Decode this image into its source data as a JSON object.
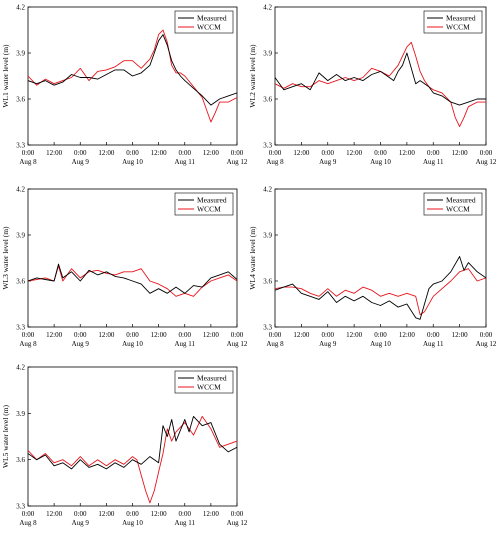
{
  "chart_data": [
    {
      "type": "line",
      "ylabel": "WL1 water level (m)",
      "ylim": [
        3.3,
        4.2
      ],
      "yticks": [
        "3.3",
        "3.6",
        "3.9",
        "4.2"
      ],
      "xlim": [
        0,
        96
      ],
      "xticks": [
        {
          "x": 0,
          "time": "0:00",
          "date": "Aug 8"
        },
        {
          "x": 12,
          "time": "12:00",
          "date": ""
        },
        {
          "x": 24,
          "time": "0:00",
          "date": "Aug 9"
        },
        {
          "x": 36,
          "time": "12:00",
          "date": ""
        },
        {
          "x": 48,
          "time": "0:00",
          "date": "Aug 10"
        },
        {
          "x": 60,
          "time": "12:00",
          "date": ""
        },
        {
          "x": 72,
          "time": "0:00",
          "date": "Aug 11"
        },
        {
          "x": 84,
          "time": "12:00",
          "date": ""
        },
        {
          "x": 96,
          "time": "0:00",
          "date": "Aug 12"
        }
      ],
      "legend_position": "top-right",
      "colors": {
        "Measured": "#000000",
        "WCCM": "#e8141b"
      },
      "series": [
        {
          "name": "Measured",
          "x": [
            0,
            4,
            8,
            12,
            16,
            20,
            24,
            28,
            32,
            36,
            40,
            44,
            48,
            52,
            56,
            58,
            60,
            62,
            64,
            66,
            68,
            70,
            72,
            76,
            80,
            84,
            88,
            92,
            96
          ],
          "values": [
            3.72,
            3.7,
            3.72,
            3.69,
            3.71,
            3.76,
            3.74,
            3.74,
            3.73,
            3.76,
            3.79,
            3.79,
            3.75,
            3.77,
            3.82,
            3.9,
            3.98,
            4.02,
            3.95,
            3.85,
            3.79,
            3.75,
            3.72,
            3.67,
            3.62,
            3.56,
            3.6,
            3.62,
            3.64
          ]
        },
        {
          "name": "WCCM",
          "x": [
            0,
            4,
            8,
            12,
            16,
            20,
            24,
            28,
            32,
            36,
            40,
            44,
            48,
            52,
            56,
            58,
            60,
            62,
            64,
            66,
            68,
            70,
            72,
            76,
            80,
            84,
            86,
            88,
            92,
            96
          ],
          "values": [
            3.75,
            3.69,
            3.73,
            3.7,
            3.72,
            3.74,
            3.8,
            3.72,
            3.78,
            3.79,
            3.81,
            3.85,
            3.85,
            3.8,
            3.86,
            3.92,
            4.02,
            4.05,
            3.97,
            3.82,
            3.77,
            3.77,
            3.75,
            3.68,
            3.61,
            3.45,
            3.51,
            3.58,
            3.58,
            3.61
          ]
        }
      ]
    },
    {
      "type": "line",
      "ylabel": "WL2 water level (m)",
      "ylim": [
        3.3,
        4.2
      ],
      "yticks": [
        "3.3",
        "3.6",
        "3.9",
        "4.2"
      ],
      "xlim": [
        0,
        96
      ],
      "xticks": [
        {
          "x": 0,
          "time": "0:00",
          "date": "Aug 8"
        },
        {
          "x": 12,
          "time": "12:00",
          "date": ""
        },
        {
          "x": 24,
          "time": "0:00",
          "date": "Aug 9"
        },
        {
          "x": 36,
          "time": "12:00",
          "date": ""
        },
        {
          "x": 48,
          "time": "0:00",
          "date": "Aug 10"
        },
        {
          "x": 60,
          "time": "12:00",
          "date": ""
        },
        {
          "x": 72,
          "time": "0:00",
          "date": "Aug 11"
        },
        {
          "x": 84,
          "time": "12:00",
          "date": ""
        },
        {
          "x": 96,
          "time": "0:00",
          "date": "Aug 12"
        }
      ],
      "legend_position": "top-right",
      "colors": {
        "Measured": "#000000",
        "WCCM": "#e8141b"
      },
      "series": [
        {
          "name": "Measured",
          "x": [
            0,
            4,
            8,
            12,
            16,
            20,
            24,
            28,
            32,
            36,
            40,
            44,
            48,
            52,
            54,
            56,
            58,
            60,
            62,
            64,
            66,
            70,
            72,
            76,
            80,
            84,
            88,
            92,
            96
          ],
          "values": [
            3.74,
            3.66,
            3.68,
            3.7,
            3.66,
            3.77,
            3.72,
            3.76,
            3.72,
            3.74,
            3.72,
            3.76,
            3.78,
            3.74,
            3.72,
            3.78,
            3.82,
            3.9,
            3.8,
            3.7,
            3.72,
            3.68,
            3.64,
            3.62,
            3.58,
            3.56,
            3.58,
            3.6,
            3.6
          ]
        },
        {
          "name": "WCCM",
          "x": [
            0,
            4,
            8,
            12,
            16,
            20,
            24,
            28,
            32,
            36,
            40,
            44,
            48,
            52,
            56,
            60,
            62,
            64,
            66,
            68,
            70,
            72,
            76,
            80,
            82,
            84,
            86,
            88,
            92,
            96
          ],
          "values": [
            3.7,
            3.67,
            3.7,
            3.68,
            3.68,
            3.72,
            3.7,
            3.72,
            3.74,
            3.72,
            3.74,
            3.8,
            3.78,
            3.75,
            3.82,
            3.94,
            3.97,
            3.88,
            3.78,
            3.72,
            3.68,
            3.66,
            3.64,
            3.58,
            3.48,
            3.42,
            3.48,
            3.55,
            3.58,
            3.58
          ]
        }
      ]
    },
    {
      "type": "line",
      "ylabel": "WL3 water level (m)",
      "ylim": [
        3.3,
        4.2
      ],
      "yticks": [
        "3.3",
        "3.6",
        "3.9",
        "4.2"
      ],
      "xlim": [
        0,
        96
      ],
      "xticks": [
        {
          "x": 0,
          "time": "0:00",
          "date": "Aug 8"
        },
        {
          "x": 12,
          "time": "12:00",
          "date": ""
        },
        {
          "x": 24,
          "time": "0:00",
          "date": "Aug 9"
        },
        {
          "x": 36,
          "time": "12:00",
          "date": ""
        },
        {
          "x": 48,
          "time": "0:00",
          "date": "Aug 10"
        },
        {
          "x": 60,
          "time": "12:00",
          "date": ""
        },
        {
          "x": 72,
          "time": "0:00",
          "date": "Aug 11"
        },
        {
          "x": 84,
          "time": "12:00",
          "date": ""
        },
        {
          "x": 96,
          "time": "0:00",
          "date": "Aug 12"
        }
      ],
      "legend_position": "top-right",
      "colors": {
        "Measured": "#000000",
        "WCCM": "#e8141b"
      },
      "series": [
        {
          "name": "Measured",
          "x": [
            0,
            4,
            8,
            12,
            14,
            16,
            20,
            24,
            28,
            32,
            36,
            40,
            44,
            48,
            52,
            56,
            60,
            64,
            68,
            72,
            76,
            80,
            84,
            88,
            92,
            96
          ],
          "values": [
            3.6,
            3.62,
            3.61,
            3.6,
            3.71,
            3.62,
            3.66,
            3.6,
            3.67,
            3.64,
            3.66,
            3.63,
            3.62,
            3.6,
            3.58,
            3.52,
            3.55,
            3.52,
            3.56,
            3.52,
            3.57,
            3.56,
            3.62,
            3.64,
            3.66,
            3.61
          ]
        },
        {
          "name": "WCCM",
          "x": [
            0,
            4,
            8,
            12,
            14,
            16,
            20,
            24,
            28,
            32,
            36,
            40,
            44,
            48,
            52,
            56,
            60,
            64,
            68,
            72,
            76,
            80,
            84,
            88,
            92,
            96
          ],
          "values": [
            3.6,
            3.61,
            3.62,
            3.6,
            3.7,
            3.6,
            3.68,
            3.62,
            3.66,
            3.67,
            3.65,
            3.64,
            3.66,
            3.66,
            3.68,
            3.6,
            3.58,
            3.55,
            3.5,
            3.52,
            3.5,
            3.56,
            3.6,
            3.62,
            3.64,
            3.6
          ]
        }
      ]
    },
    {
      "type": "line",
      "ylabel": "WL4 water level (m)",
      "ylim": [
        3.3,
        4.2
      ],
      "yticks": [
        "3.3",
        "3.6",
        "3.9",
        "4.2"
      ],
      "xlim": [
        0,
        96
      ],
      "xticks": [
        {
          "x": 0,
          "time": "0:00",
          "date": "Aug 8"
        },
        {
          "x": 12,
          "time": "12:00",
          "date": ""
        },
        {
          "x": 24,
          "time": "0:00",
          "date": "Aug 9"
        },
        {
          "x": 36,
          "time": "12:00",
          "date": ""
        },
        {
          "x": 48,
          "time": "0:00",
          "date": "Aug 10"
        },
        {
          "x": 60,
          "time": "12:00",
          "date": ""
        },
        {
          "x": 72,
          "time": "0:00",
          "date": "Aug 11"
        },
        {
          "x": 84,
          "time": "12:00",
          "date": ""
        },
        {
          "x": 96,
          "time": "0:00",
          "date": "Aug 12"
        }
      ],
      "legend_position": "top-right",
      "colors": {
        "Measured": "#000000",
        "WCCM": "#e8141b"
      },
      "series": [
        {
          "name": "Measured",
          "x": [
            0,
            4,
            8,
            12,
            16,
            20,
            24,
            28,
            32,
            36,
            40,
            44,
            48,
            52,
            56,
            60,
            64,
            66,
            68,
            70,
            72,
            76,
            80,
            84,
            86,
            88,
            92,
            96
          ],
          "values": [
            3.54,
            3.56,
            3.58,
            3.52,
            3.5,
            3.48,
            3.53,
            3.46,
            3.5,
            3.47,
            3.5,
            3.46,
            3.44,
            3.47,
            3.43,
            3.45,
            3.36,
            3.35,
            3.45,
            3.55,
            3.58,
            3.6,
            3.66,
            3.76,
            3.67,
            3.72,
            3.66,
            3.62
          ]
        },
        {
          "name": "WCCM",
          "x": [
            0,
            4,
            8,
            12,
            16,
            20,
            24,
            28,
            32,
            36,
            40,
            44,
            48,
            52,
            56,
            60,
            64,
            66,
            68,
            72,
            76,
            80,
            84,
            88,
            92,
            96
          ],
          "values": [
            3.55,
            3.56,
            3.56,
            3.55,
            3.52,
            3.5,
            3.55,
            3.5,
            3.54,
            3.52,
            3.56,
            3.54,
            3.5,
            3.52,
            3.5,
            3.52,
            3.5,
            3.38,
            3.4,
            3.5,
            3.55,
            3.6,
            3.66,
            3.68,
            3.6,
            3.62
          ]
        }
      ]
    },
    {
      "type": "line",
      "ylabel": "WL5 water level (m)",
      "ylim": [
        3.3,
        4.2
      ],
      "yticks": [
        "3.3",
        "3.6",
        "3.9",
        "4.2"
      ],
      "xlim": [
        0,
        96
      ],
      "xticks": [
        {
          "x": 0,
          "time": "0:00",
          "date": "Aug 8"
        },
        {
          "x": 12,
          "time": "12:00",
          "date": ""
        },
        {
          "x": 24,
          "time": "0:00",
          "date": "Aug 9"
        },
        {
          "x": 36,
          "time": "12:00",
          "date": ""
        },
        {
          "x": 48,
          "time": "0:00",
          "date": "Aug 10"
        },
        {
          "x": 60,
          "time": "12:00",
          "date": ""
        },
        {
          "x": 72,
          "time": "0:00",
          "date": "Aug 11"
        },
        {
          "x": 84,
          "time": "12:00",
          "date": ""
        },
        {
          "x": 96,
          "time": "0:00",
          "date": "Aug 12"
        }
      ],
      "legend_position": "top-right",
      "colors": {
        "Measured": "#000000",
        "WCCM": "#e8141b"
      },
      "series": [
        {
          "name": "Measured",
          "x": [
            0,
            4,
            8,
            12,
            16,
            20,
            24,
            28,
            32,
            36,
            40,
            44,
            48,
            52,
            56,
            60,
            62,
            64,
            66,
            68,
            72,
            74,
            76,
            80,
            84,
            88,
            92,
            96
          ],
          "values": [
            3.64,
            3.6,
            3.63,
            3.56,
            3.58,
            3.54,
            3.6,
            3.55,
            3.57,
            3.54,
            3.58,
            3.55,
            3.6,
            3.57,
            3.62,
            3.58,
            3.82,
            3.75,
            3.86,
            3.72,
            3.86,
            3.78,
            3.88,
            3.82,
            3.84,
            3.7,
            3.65,
            3.68
          ]
        },
        {
          "name": "WCCM",
          "x": [
            0,
            4,
            8,
            12,
            16,
            20,
            24,
            28,
            32,
            36,
            40,
            44,
            48,
            50,
            52,
            54,
            56,
            58,
            60,
            62,
            64,
            66,
            68,
            72,
            76,
            80,
            84,
            88,
            92,
            96
          ],
          "values": [
            3.66,
            3.6,
            3.64,
            3.58,
            3.6,
            3.56,
            3.62,
            3.56,
            3.6,
            3.56,
            3.6,
            3.57,
            3.62,
            3.6,
            3.5,
            3.4,
            3.32,
            3.4,
            3.52,
            3.64,
            3.8,
            3.72,
            3.78,
            3.84,
            3.76,
            3.88,
            3.8,
            3.68,
            3.7,
            3.72
          ]
        }
      ]
    }
  ]
}
